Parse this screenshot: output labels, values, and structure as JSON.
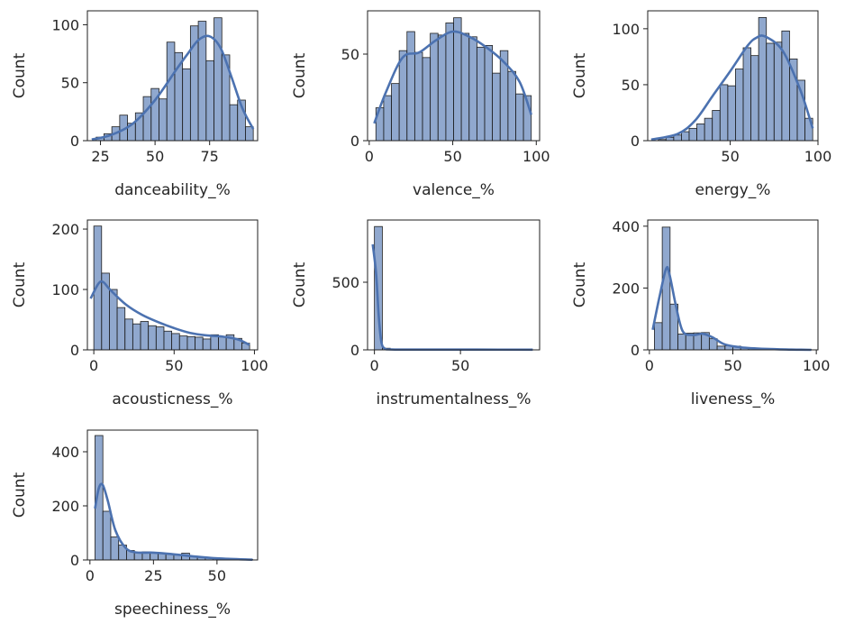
{
  "chart_data": [
    {
      "type": "bar",
      "xlabel": "danceability_%",
      "ylabel": "Count",
      "bin_edges": [
        23.0,
        26.6,
        30.2,
        33.8,
        37.4,
        41.0,
        44.6,
        48.2,
        51.8,
        55.4,
        59.0,
        62.6,
        66.2,
        69.8,
        73.4,
        77.0,
        80.6,
        84.2,
        87.8,
        91.4,
        95.0
      ],
      "values": [
        3,
        6,
        12,
        22,
        15,
        24,
        38,
        45,
        36,
        85,
        76,
        62,
        99,
        103,
        69,
        106,
        74,
        31,
        35,
        12
      ],
      "kde": [
        [
          21,
          1
        ],
        [
          30,
          5
        ],
        [
          40,
          15
        ],
        [
          50,
          35
        ],
        [
          60,
          62
        ],
        [
          65,
          75
        ],
        [
          70,
          87
        ],
        [
          75,
          90
        ],
        [
          80,
          80
        ],
        [
          85,
          55
        ],
        [
          90,
          28
        ],
        [
          95,
          10
        ]
      ],
      "xticks": [
        25,
        50,
        75
      ],
      "yticks": [
        0,
        50,
        100
      ],
      "xlim": [
        19,
        97
      ],
      "ylim": [
        0,
        112
      ],
      "color": "#4c72b0"
    },
    {
      "type": "bar",
      "xlabel": "valence_%",
      "ylabel": "Count",
      "bin_edges": [
        4.0,
        8.65,
        13.3,
        17.95,
        22.6,
        27.25,
        31.9,
        36.55,
        41.2,
        45.85,
        50.5,
        55.15,
        59.8,
        64.45,
        69.1,
        73.75,
        78.4,
        83.05,
        87.7,
        92.35,
        97.0
      ],
      "values": [
        19,
        26,
        33,
        52,
        63,
        51,
        48,
        62,
        61,
        68,
        71,
        62,
        60,
        54,
        55,
        39,
        52,
        40,
        27,
        26
      ],
      "kde": [
        [
          3,
          10
        ],
        [
          10,
          28
        ],
        [
          20,
          48
        ],
        [
          30,
          51
        ],
        [
          40,
          58
        ],
        [
          50,
          63
        ],
        [
          60,
          60
        ],
        [
          70,
          54
        ],
        [
          80,
          46
        ],
        [
          90,
          34
        ],
        [
          97,
          15
        ]
      ],
      "xticks": [
        0,
        50,
        100
      ],
      "yticks": [
        0,
        50
      ],
      "xlim": [
        -1,
        102
      ],
      "ylim": [
        0,
        75
      ],
      "color": "#4c72b0"
    },
    {
      "type": "bar",
      "xlabel": "energy_%",
      "ylabel": "Count",
      "bin_edges": [
        9.0,
        13.4,
        17.8,
        22.2,
        26.6,
        31.0,
        35.4,
        39.8,
        44.2,
        48.6,
        53.0,
        57.4,
        61.8,
        66.2,
        70.6,
        75.0,
        79.4,
        83.8,
        88.2,
        92.6,
        97.0
      ],
      "values": [
        1,
        3,
        5,
        8,
        11,
        15,
        20,
        27,
        50,
        49,
        64,
        83,
        76,
        110,
        87,
        88,
        98,
        73,
        54,
        20
      ],
      "kde": [
        [
          5,
          1
        ],
        [
          20,
          6
        ],
        [
          30,
          18
        ],
        [
          40,
          40
        ],
        [
          50,
          62
        ],
        [
          60,
          85
        ],
        [
          65,
          92
        ],
        [
          70,
          93
        ],
        [
          80,
          80
        ],
        [
          90,
          45
        ],
        [
          97,
          11
        ]
      ],
      "xticks": [
        50,
        100
      ],
      "yticks": [
        0,
        50,
        100
      ],
      "xlim": [
        3,
        100
      ],
      "ylim": [
        0,
        116
      ],
      "color": "#4c72b0"
    },
    {
      "type": "bar",
      "xlabel": "acousticness_%",
      "ylabel": "Count",
      "bin_edges": [
        0.0,
        4.85,
        9.7,
        14.55,
        19.4,
        24.25,
        29.1,
        33.95,
        38.8,
        43.65,
        48.5,
        53.35,
        58.2,
        63.05,
        67.9,
        72.75,
        77.6,
        82.45,
        87.3,
        92.15,
        97.0
      ],
      "values": [
        205,
        127,
        100,
        70,
        51,
        43,
        47,
        40,
        38,
        31,
        27,
        23,
        22,
        21,
        18,
        25,
        22,
        25,
        19,
        11
      ],
      "kde": [
        [
          -2,
          85
        ],
        [
          3,
          110
        ],
        [
          6,
          112
        ],
        [
          10,
          100
        ],
        [
          20,
          75
        ],
        [
          30,
          58
        ],
        [
          40,
          46
        ],
        [
          50,
          36
        ],
        [
          60,
          28
        ],
        [
          70,
          24
        ],
        [
          80,
          22
        ],
        [
          90,
          17
        ],
        [
          97,
          8
        ]
      ],
      "xticks": [
        0,
        50,
        100
      ],
      "yticks": [
        0,
        100,
        200
      ],
      "xlim": [
        -4,
        102
      ],
      "ylim": [
        0,
        215
      ],
      "color": "#4c72b0"
    },
    {
      "type": "bar",
      "xlabel": "instrumentalness_%",
      "ylabel": "Count",
      "bin_edges": [
        0.0,
        4.6,
        9.2,
        13.8,
        18.4,
        23.0,
        27.6,
        32.2,
        36.8,
        41.4,
        46.0,
        50.6,
        55.2,
        59.8,
        64.4,
        69.0,
        73.6,
        78.2,
        82.8,
        87.4,
        92.0
      ],
      "values": [
        912,
        12,
        4,
        3,
        2,
        2,
        1,
        1,
        1,
        1,
        1,
        1,
        1,
        1,
        1,
        0,
        1,
        1,
        1,
        1
      ],
      "kde": [
        [
          -1,
          780
        ],
        [
          1,
          560
        ],
        [
          2.5,
          250
        ],
        [
          4,
          60
        ],
        [
          6,
          10
        ],
        [
          10,
          3
        ],
        [
          30,
          2
        ],
        [
          60,
          2
        ],
        [
          92,
          1
        ]
      ],
      "xticks": [
        0,
        50
      ],
      "yticks": [
        0,
        500
      ],
      "xlim": [
        -4,
        96
      ],
      "ylim": [
        0,
        960
      ],
      "color": "#4c72b0"
    },
    {
      "type": "bar",
      "xlabel": "liveness_%",
      "ylabel": "Count",
      "bin_edges": [
        3.0,
        7.7,
        12.4,
        17.1,
        21.8,
        26.5,
        31.2,
        35.9,
        40.6,
        45.3,
        50.0,
        54.7,
        59.4,
        64.1,
        68.8,
        73.5,
        78.2,
        82.9,
        87.6,
        92.3,
        97.0
      ],
      "values": [
        88,
        397,
        148,
        51,
        54,
        55,
        56,
        36,
        12,
        13,
        12,
        6,
        4,
        3,
        2,
        1,
        1,
        1,
        1,
        1
      ],
      "kde": [
        [
          2,
          65
        ],
        [
          6,
          170
        ],
        [
          10,
          262
        ],
        [
          12,
          245
        ],
        [
          16,
          140
        ],
        [
          20,
          60
        ],
        [
          26,
          48
        ],
        [
          32,
          52
        ],
        [
          38,
          40
        ],
        [
          45,
          18
        ],
        [
          55,
          8
        ],
        [
          70,
          3
        ],
        [
          85,
          1
        ],
        [
          97,
          0
        ]
      ],
      "xticks": [
        0,
        50,
        100
      ],
      "yticks": [
        0,
        200,
        400
      ],
      "xlim": [
        -1,
        101
      ],
      "ylim": [
        0,
        420
      ],
      "color": "#4c72b0"
    },
    {
      "type": "bar",
      "xlabel": "speechiness_%",
      "ylabel": "Count",
      "bin_edges": [
        2.0,
        5.1,
        8.2,
        11.3,
        14.4,
        17.5,
        20.6,
        23.7,
        26.8,
        29.9,
        33.0,
        36.1,
        39.2,
        42.3,
        45.4,
        48.5,
        51.6,
        54.7,
        57.8,
        60.9,
        64.0
      ],
      "values": [
        460,
        180,
        85,
        55,
        35,
        28,
        30,
        26,
        23,
        22,
        20,
        25,
        14,
        10,
        8,
        6,
        5,
        4,
        3,
        2
      ],
      "kde": [
        [
          2,
          190
        ],
        [
          3.5,
          265
        ],
        [
          5,
          278
        ],
        [
          7,
          220
        ],
        [
          10,
          110
        ],
        [
          14,
          45
        ],
        [
          18,
          28
        ],
        [
          25,
          27
        ],
        [
          32,
          22
        ],
        [
          40,
          14
        ],
        [
          50,
          6
        ],
        [
          64,
          1
        ]
      ],
      "xticks": [
        0,
        25,
        50
      ],
      "yticks": [
        0,
        200,
        400
      ],
      "xlim": [
        -1,
        66
      ],
      "ylim": [
        0,
        480
      ],
      "color": "#4c72b0"
    }
  ]
}
